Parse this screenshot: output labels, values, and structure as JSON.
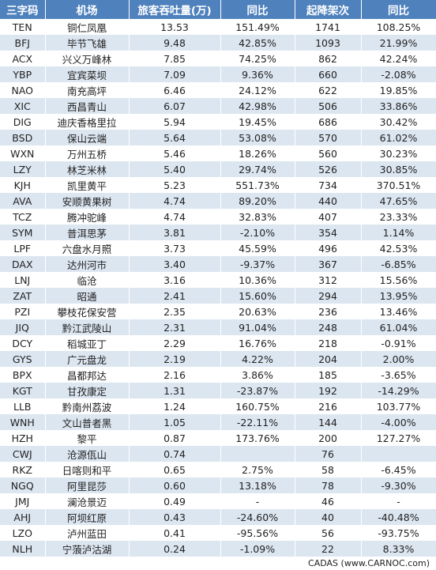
{
  "table": {
    "header": [
      "三字码",
      "机场",
      "旅客吞吐量(万)",
      "同比",
      "起降架次",
      "同比"
    ],
    "rows": [
      [
        "TEN",
        "铜仁凤凰",
        "13.53",
        "151.49%",
        "1741",
        "108.25%"
      ],
      [
        "BFJ",
        "毕节飞雄",
        "9.48",
        "42.85%",
        "1093",
        "21.99%"
      ],
      [
        "ACX",
        "兴义万峰林",
        "7.85",
        "74.25%",
        "862",
        "42.24%"
      ],
      [
        "YBP",
        "宜宾菜坝",
        "7.09",
        "9.36%",
        "660",
        "-2.08%"
      ],
      [
        "NAO",
        "南充高坪",
        "6.46",
        "24.12%",
        "622",
        "19.85%"
      ],
      [
        "XIC",
        "西昌青山",
        "6.07",
        "42.98%",
        "506",
        "33.86%"
      ],
      [
        "DIG",
        "迪庆香格里拉",
        "5.94",
        "19.45%",
        "686",
        "30.42%"
      ],
      [
        "BSD",
        "保山云端",
        "5.64",
        "53.08%",
        "570",
        "61.02%"
      ],
      [
        "WXN",
        "万州五桥",
        "5.46",
        "18.26%",
        "560",
        "30.23%"
      ],
      [
        "LZY",
        "林芝米林",
        "5.40",
        "29.74%",
        "526",
        "30.85%"
      ],
      [
        "KJH",
        "凯里黄平",
        "5.23",
        "551.73%",
        "734",
        "370.51%"
      ],
      [
        "AVA",
        "安顺黄果树",
        "4.74",
        "89.20%",
        "440",
        "47.65%"
      ],
      [
        "TCZ",
        "腾冲驼峰",
        "4.74",
        "32.83%",
        "407",
        "23.33%"
      ],
      [
        "SYM",
        "普洱思茅",
        "3.81",
        "-2.10%",
        "354",
        "1.14%"
      ],
      [
        "LPF",
        "六盘水月照",
        "3.73",
        "45.59%",
        "496",
        "42.53%"
      ],
      [
        "DAX",
        "达州河市",
        "3.40",
        "-9.37%",
        "367",
        "-6.85%"
      ],
      [
        "LNJ",
        "临沧",
        "3.16",
        "10.36%",
        "312",
        "15.56%"
      ],
      [
        "ZAT",
        "昭通",
        "2.41",
        "15.60%",
        "294",
        "13.95%"
      ],
      [
        "PZI",
        "攀枝花保安营",
        "2.35",
        "20.63%",
        "236",
        "13.46%"
      ],
      [
        "JIQ",
        "黔江武陵山",
        "2.31",
        "91.04%",
        "248",
        "61.04%"
      ],
      [
        "DCY",
        "稻城亚丁",
        "2.29",
        "16.76%",
        "218",
        "-0.91%"
      ],
      [
        "GYS",
        "广元盘龙",
        "2.19",
        "4.22%",
        "204",
        "2.00%"
      ],
      [
        "BPX",
        "昌都邦达",
        "2.16",
        "3.86%",
        "185",
        "-3.65%"
      ],
      [
        "KGT",
        "甘孜康定",
        "1.31",
        "-23.87%",
        "192",
        "-14.29%"
      ],
      [
        "LLB",
        "黔南州荔波",
        "1.24",
        "160.75%",
        "216",
        "103.77%"
      ],
      [
        "WNH",
        "文山普者黑",
        "1.05",
        "-22.11%",
        "144",
        "-4.00%"
      ],
      [
        "HZH",
        "黎平",
        "0.87",
        "173.76%",
        "200",
        "127.27%"
      ],
      [
        "CWJ",
        "沧源佤山",
        "0.74",
        null,
        "76",
        null
      ],
      [
        "RKZ",
        "日喀则和平",
        "0.65",
        "2.75%",
        "58",
        "-6.45%"
      ],
      [
        "NGQ",
        "阿里昆莎",
        "0.60",
        "13.18%",
        "78",
        "-9.30%"
      ],
      [
        "JMJ",
        "澜沧景迈",
        "0.49",
        "-",
        "46",
        "-"
      ],
      [
        "AHJ",
        "阿坝红原",
        "0.43",
        "-24.60%",
        "40",
        "-40.48%"
      ],
      [
        "LZO",
        "泸州蓝田",
        "0.41",
        "-95.56%",
        "56",
        "-93.75%"
      ],
      [
        "NLH",
        "宁蒗泸沽湖",
        "0.24",
        "-1.09%",
        "22",
        "8.33%"
      ]
    ]
  },
  "footer": "CADAS  (www.CARNOC.com)"
}
